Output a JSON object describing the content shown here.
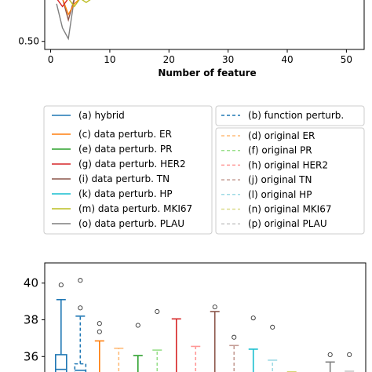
{
  "chart_data": [
    {
      "type": "line",
      "xlabel": "Number of feature",
      "ylabel": "",
      "xlim": [
        -1,
        53
      ],
      "ylim": [
        0.47,
        0.66
      ],
      "x_ticks": [
        "0",
        "10",
        "20",
        "30",
        "40",
        "50"
      ],
      "y_ticks": [
        "0.50"
      ],
      "series": [
        {
          "name": "(o) data perturb. PLAU",
          "color": "#7f7f7f",
          "x": [
            1,
            2,
            3,
            4
          ],
          "y": [
            0.64,
            0.55,
            0.51,
            0.66
          ]
        },
        {
          "name": "(i) data perturb. TN",
          "color": "#8c564b",
          "x": [
            2,
            3,
            4
          ],
          "y": [
            0.66,
            0.58,
            0.66
          ]
        },
        {
          "name": "(c) data perturb. ER",
          "color": "#ff7f0e",
          "x": [
            2,
            3,
            4,
            5
          ],
          "y": [
            0.66,
            0.6,
            0.64,
            0.66
          ]
        },
        {
          "name": "(m) data perturb. MKI67",
          "color": "#bcbd22",
          "x": [
            3,
            4,
            5,
            6,
            7
          ],
          "y": [
            0.66,
            0.63,
            0.66,
            0.645,
            0.66
          ]
        },
        {
          "name": "(g) data perturb. HER2",
          "color": "#d62728",
          "x": [
            1,
            2,
            3
          ],
          "y": [
            0.66,
            0.63,
            0.66
          ]
        }
      ]
    },
    {
      "type": "legend",
      "left_column": [
        {
          "label": "(a) hybrid",
          "color": "#1f77b4",
          "dashed": false
        },
        {
          "label": "(c) data perturb. ER",
          "color": "#ff7f0e",
          "dashed": false
        },
        {
          "label": "(e) data perturb. PR",
          "color": "#2ca02c",
          "dashed": false
        },
        {
          "label": "(g) data perturb. HER2",
          "color": "#d62728",
          "dashed": false
        },
        {
          "label": "(i) data perturb. TN",
          "color": "#8c564b",
          "dashed": false
        },
        {
          "label": "(k) data perturb. HP",
          "color": "#17becf",
          "dashed": false
        },
        {
          "label": "(m) data perturb. MKI67",
          "color": "#bcbd22",
          "dashed": false
        },
        {
          "label": "(o) data perturb. PLAU",
          "color": "#7f7f7f",
          "dashed": false
        }
      ],
      "right_column": [
        {
          "label": "(b) function perturb.",
          "color": "#1f77b4",
          "dashed": true
        },
        {
          "label": "(d) original ER",
          "color": "#ffbb78",
          "dashed": true
        },
        {
          "label": "(f) original PR",
          "color": "#98df8a",
          "dashed": true
        },
        {
          "label": "(h) original HER2",
          "color": "#ff9896",
          "dashed": true
        },
        {
          "label": "(j) original TN",
          "color": "#c49c94",
          "dashed": true
        },
        {
          "label": "(l) original HP",
          "color": "#9edae5",
          "dashed": true
        },
        {
          "label": "(n) original MKI67",
          "color": "#dbdb8d",
          "dashed": true
        },
        {
          "label": "(p) original PLAU",
          "color": "#c7c7c7",
          "dashed": true
        }
      ]
    },
    {
      "type": "box",
      "ylim": [
        34.9,
        41.1
      ],
      "y_ticks": [
        {
          "value": 40,
          "label": "40"
        },
        {
          "value": 38,
          "label": "38"
        },
        {
          "value": 36,
          "label": "36"
        }
      ],
      "boxes": [
        {
          "color": "#1f77b4",
          "dashed": false,
          "q1": 35.0,
          "median": 35.3,
          "q3": 36.1,
          "whisker_high": 39.1,
          "outliers": [
            39.9
          ]
        },
        {
          "color": "#1f77b4",
          "dashed": true,
          "q1": 35.0,
          "median": 35.25,
          "q3": 35.6,
          "whisker_high": 38.2,
          "outliers": [
            38.65,
            40.15
          ]
        },
        {
          "color": "#ff7f0e",
          "dashed": false,
          "whisker_high": 36.85,
          "outliers": [
            37.35,
            37.8
          ]
        },
        {
          "color": "#ffbb78",
          "dashed": true,
          "whisker_high": 36.45,
          "outliers": []
        },
        {
          "color": "#2ca02c",
          "dashed": false,
          "whisker_high": 36.05,
          "outliers": [
            37.7
          ]
        },
        {
          "color": "#98df8a",
          "dashed": true,
          "whisker_high": 36.35,
          "outliers": [
            38.45
          ]
        },
        {
          "color": "#d62728",
          "dashed": false,
          "whisker_high": 38.05,
          "outliers": []
        },
        {
          "color": "#ff9896",
          "dashed": true,
          "whisker_high": 36.55,
          "outliers": []
        },
        {
          "color": "#8c564b",
          "dashed": false,
          "whisker_high": 38.45,
          "outliers": [
            38.7
          ]
        },
        {
          "color": "#c49c94",
          "dashed": true,
          "whisker_high": 36.6,
          "outliers": [
            37.05
          ]
        },
        {
          "color": "#17becf",
          "dashed": false,
          "whisker_high": 36.4,
          "outliers": [
            38.1
          ]
        },
        {
          "color": "#9edae5",
          "dashed": true,
          "whisker_high": 35.8,
          "outliers": [
            37.6
          ]
        },
        {
          "color": "#bcbd22",
          "dashed": false,
          "whisker_high": 35.15,
          "outliers": []
        },
        {
          "color": "#dbdb8d",
          "dashed": true,
          "whisker_high": 35.1,
          "outliers": []
        },
        {
          "color": "#7f7f7f",
          "dashed": false,
          "whisker_high": 35.7,
          "outliers": [
            36.1
          ]
        },
        {
          "color": "#c7c7c7",
          "dashed": true,
          "whisker_high": 35.2,
          "outliers": [
            36.1
          ]
        }
      ]
    }
  ]
}
